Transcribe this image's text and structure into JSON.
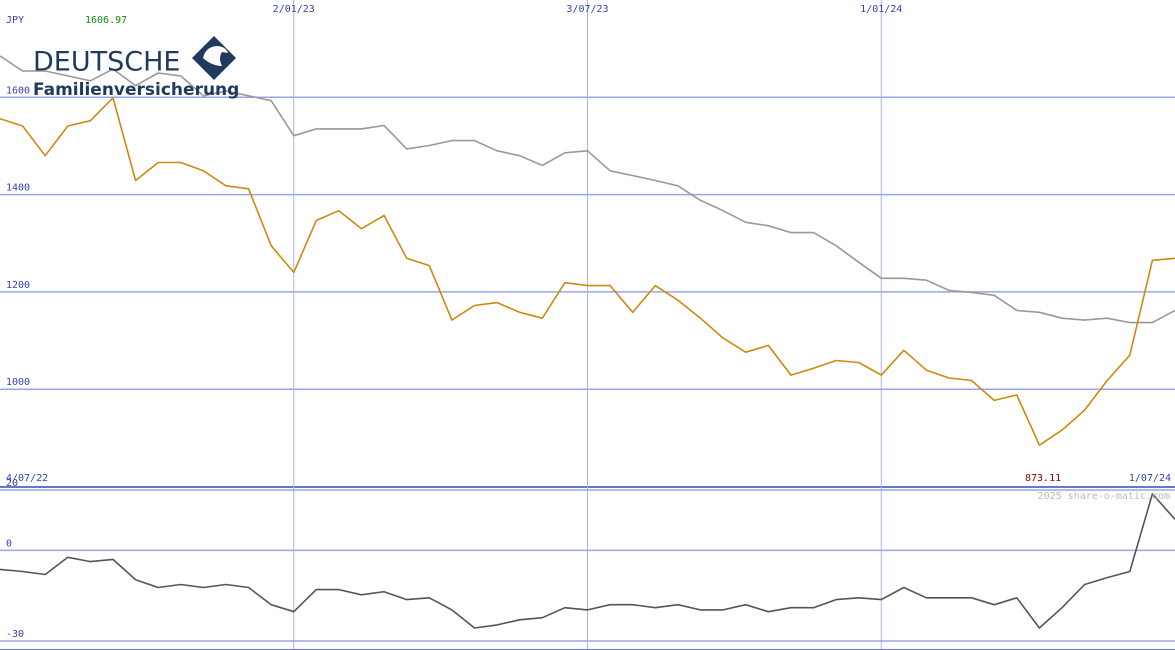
{
  "logo": {
    "line1": "DEUTSCHE",
    "line2": "Familienversicherung"
  },
  "chart_data": [
    {
      "type": "line",
      "currency": "JPY",
      "high_label": "1606.97",
      "low_label": "873.11",
      "x": [
        "2022-07-04",
        "2022-07-18",
        "2022-08-01",
        "2022-08-15",
        "2022-08-29",
        "2022-09-12",
        "2022-09-26",
        "2022-10-10",
        "2022-10-24",
        "2022-11-07",
        "2022-11-21",
        "2022-12-05",
        "2022-12-19",
        "2023-01-02",
        "2023-01-16",
        "2023-01-30",
        "2023-02-13",
        "2023-02-27",
        "2023-03-13",
        "2023-03-27",
        "2023-04-10",
        "2023-04-24",
        "2023-05-08",
        "2023-05-22",
        "2023-06-05",
        "2023-06-19",
        "2023-07-03",
        "2023-07-17",
        "2023-07-31",
        "2023-08-14",
        "2023-08-28",
        "2023-09-11",
        "2023-09-25",
        "2023-10-09",
        "2023-10-23",
        "2023-11-06",
        "2023-11-20",
        "2023-12-04",
        "2023-12-18",
        "2024-01-01",
        "2024-01-15",
        "2024-01-29",
        "2024-02-12",
        "2024-02-26",
        "2024-03-11",
        "2024-03-25",
        "2024-04-08",
        "2024-04-22",
        "2024-05-06",
        "2024-05-20",
        "2024-06-03",
        "2024-06-17",
        "2024-07-01"
      ],
      "series": [
        {
          "color": "#999999",
          "values": [
            1685,
            1654,
            1654,
            1644,
            1634,
            1658,
            1624,
            1650,
            1644,
            1603,
            1613,
            1603,
            1593,
            1521,
            1535,
            1535,
            1535,
            1542,
            1494,
            1501,
            1511,
            1511,
            1490,
            1480,
            1460,
            1486,
            1490,
            1449,
            1439,
            1429,
            1418,
            1388,
            1367,
            1343,
            1336,
            1322,
            1322,
            1295,
            1261,
            1228,
            1228,
            1224,
            1203,
            1199,
            1193,
            1162,
            1158,
            1146,
            1142,
            1146,
            1137,
            1137,
            1162
          ]
        },
        {
          "color": "#cc8a10",
          "values": [
            1556,
            1541,
            1480,
            1541,
            1552,
            1599,
            1429,
            1466,
            1466,
            1449,
            1418,
            1412,
            1295,
            1240,
            1347,
            1367,
            1330,
            1357,
            1269,
            1254,
            1142,
            1172,
            1178,
            1158,
            1146,
            1219,
            1213,
            1213,
            1158,
            1213,
            1183,
            1146,
            1105,
            1076,
            1090,
            1029,
            1043,
            1059,
            1055,
            1029,
            1080,
            1039,
            1023,
            1018,
            977,
            988,
            885,
            916,
            957,
            1018,
            1070,
            1265,
            1269
          ]
        }
      ],
      "xlim": [
        "2022-07-04",
        "2024-07-01"
      ],
      "xticks": [
        {
          "value": "2022-07-04",
          "label": "4/07/22"
        },
        {
          "value": "2023-01-02",
          "label": "2/01/23"
        },
        {
          "value": "2023-07-03",
          "label": "3/07/23"
        },
        {
          "value": "2024-01-01",
          "label": "1/01/24"
        },
        {
          "value": "2024-07-01",
          "label": "1/07/24"
        }
      ],
      "ylim": [
        799,
        1800
      ],
      "yticks": [
        1000,
        1200,
        1400,
        1600
      ],
      "grid": true
    },
    {
      "type": "line",
      "credit": "2025 share-o-matic.com",
      "x": [
        "2022-07-04",
        "2022-07-18",
        "2022-08-01",
        "2022-08-15",
        "2022-08-29",
        "2022-09-12",
        "2022-09-26",
        "2022-10-10",
        "2022-10-24",
        "2022-11-07",
        "2022-11-21",
        "2022-12-05",
        "2022-12-19",
        "2023-01-02",
        "2023-01-16",
        "2023-01-30",
        "2023-02-13",
        "2023-02-27",
        "2023-03-13",
        "2023-03-27",
        "2023-04-10",
        "2023-04-24",
        "2023-05-08",
        "2023-05-22",
        "2023-06-05",
        "2023-06-19",
        "2023-07-03",
        "2023-07-17",
        "2023-07-31",
        "2023-08-14",
        "2023-08-28",
        "2023-09-11",
        "2023-09-25",
        "2023-10-09",
        "2023-10-23",
        "2023-11-06",
        "2023-11-20",
        "2023-12-04",
        "2023-12-18",
        "2024-01-01",
        "2024-01-15",
        "2024-01-29",
        "2024-02-12",
        "2024-02-26",
        "2024-03-11",
        "2024-03-25",
        "2024-04-08",
        "2024-04-22",
        "2024-05-06",
        "2024-05-20",
        "2024-06-03",
        "2024-06-17",
        "2024-07-01"
      ],
      "series": [
        {
          "color": "#555555",
          "values": [
            -6.3,
            -7,
            -8,
            -2.3,
            -3.7,
            -3,
            -9.7,
            -12.3,
            -11.3,
            -12.3,
            -11.3,
            -12.3,
            -18,
            -20.3,
            -13,
            -13,
            -14.7,
            -13.7,
            -16.3,
            -15.7,
            -19.7,
            -25.7,
            -24.7,
            -23,
            -22.3,
            -19,
            -19.7,
            -18,
            -18,
            -19,
            -18,
            -19.7,
            -19.7,
            -18,
            -20.3,
            -19,
            -19,
            -16.3,
            -15.7,
            -16.3,
            -12.3,
            -15.7,
            -15.7,
            -15.7,
            -18,
            -15.7,
            -25.7,
            -19,
            -11.3,
            -9,
            -7,
            18.7,
            10.3
          ]
        }
      ],
      "xlim": [
        "2022-07-04",
        "2024-07-01"
      ],
      "ylim": [
        -33,
        21
      ],
      "yticks": [
        20,
        0,
        -30
      ],
      "grid": true
    }
  ]
}
